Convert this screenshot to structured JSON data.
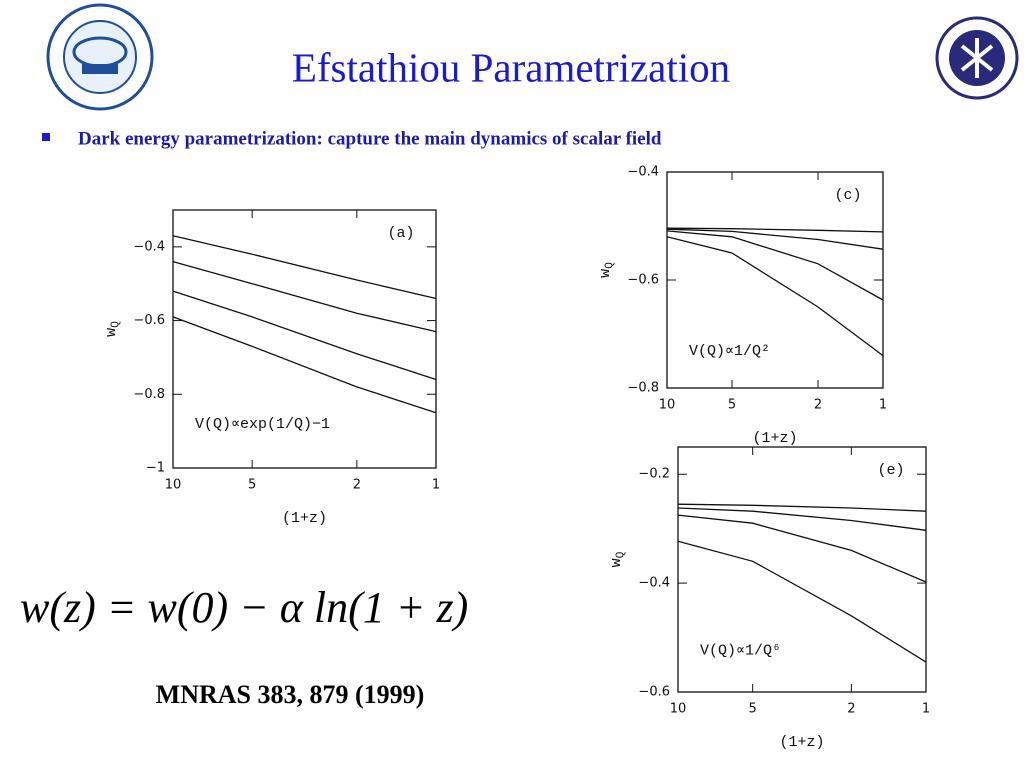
{
  "title": "Efstathiou Parametrization",
  "bullet": "Dark energy parametrization: capture the main dynamics of scalar field",
  "equation": "w(z) = w(0) − α ln(1 + z)",
  "citation": "MNRAS 383, 879 (1999)",
  "chart_data": [
    {
      "type": "line",
      "panel": "(a)",
      "annotation": "V(Q)∝exp(1/Q)−1",
      "xlabel": "(1+z)",
      "ylabel": {
        "main": "w",
        "sub": "Q"
      },
      "xscale": "log",
      "xlim": [
        10,
        1
      ],
      "xticks": [
        10,
        5,
        2,
        1
      ],
      "ylim": [
        -1,
        -0.3
      ],
      "yticks": [
        -1,
        -0.8,
        -0.6,
        -0.4
      ],
      "color": "#111111",
      "x": [
        10,
        5,
        2,
        1
      ],
      "series": [
        {
          "values": [
            -0.37,
            -0.42,
            -0.49,
            -0.54
          ]
        },
        {
          "values": [
            -0.44,
            -0.5,
            -0.58,
            -0.63
          ]
        },
        {
          "values": [
            -0.52,
            -0.59,
            -0.69,
            -0.76
          ]
        },
        {
          "values": [
            -0.59,
            -0.67,
            -0.78,
            -0.85
          ]
        }
      ]
    },
    {
      "type": "line",
      "panel": "(c)",
      "annotation": "V(Q)∝1/Q²",
      "xlabel": "(1+z)",
      "ylabel": {
        "main": "w",
        "sub": "Q"
      },
      "xscale": "log",
      "xlim": [
        10,
        1
      ],
      "xticks": [
        10,
        5,
        2,
        1
      ],
      "ylim": [
        -0.8,
        -0.4
      ],
      "yticks": [
        -0.8,
        -0.6,
        -0.4
      ],
      "color": "#111111",
      "x": [
        10,
        5,
        2,
        1
      ],
      "series": [
        {
          "values": [
            -0.504,
            -0.505,
            -0.508,
            -0.511
          ]
        },
        {
          "values": [
            -0.506,
            -0.51,
            -0.525,
            -0.543
          ]
        },
        {
          "values": [
            -0.509,
            -0.52,
            -0.57,
            -0.637
          ]
        },
        {
          "values": [
            -0.52,
            -0.55,
            -0.65,
            -0.74
          ]
        }
      ]
    },
    {
      "type": "line",
      "panel": "(e)",
      "annotation": "V(Q)∝1/Q⁶",
      "xlabel": "(1+z)",
      "ylabel": {
        "main": "w",
        "sub": "Q"
      },
      "xscale": "log",
      "xlim": [
        10,
        1
      ],
      "xticks": [
        10,
        5,
        2,
        1
      ],
      "ylim": [
        -0.6,
        -0.15
      ],
      "yticks": [
        -0.6,
        -0.4,
        -0.2
      ],
      "color": "#111111",
      "x": [
        10,
        5,
        2,
        1
      ],
      "series": [
        {
          "values": [
            -0.255,
            -0.257,
            -0.262,
            -0.268
          ]
        },
        {
          "values": [
            -0.262,
            -0.268,
            -0.285,
            -0.303
          ]
        },
        {
          "values": [
            -0.275,
            -0.29,
            -0.34,
            -0.398
          ]
        },
        {
          "values": [
            -0.323,
            -0.36,
            -0.46,
            -0.545
          ]
        }
      ]
    }
  ]
}
